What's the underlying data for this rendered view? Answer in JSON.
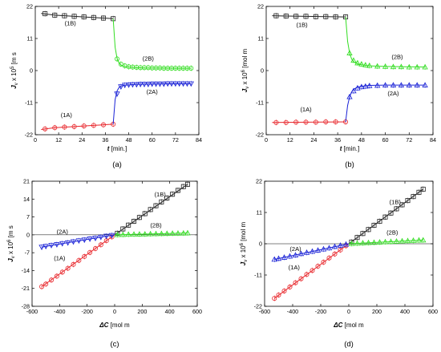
{
  "panels_text": {
    "a": {
      "label": "(a)",
      "ylabel_prefix": "J",
      "ylabel_suffix": "x 10",
      "ylabel_unit": "[m s",
      "xlabel_var": "t",
      "xlabel_unit": "[min.]"
    },
    "b": {
      "label": "(b)",
      "ylabel_prefix": "J",
      "ylabel_suffix": "x 10",
      "ylabel_unit": "[mol m",
      "xlabel_var": "t",
      "xlabel_unit": "[min.]"
    },
    "c": {
      "label": "(c)",
      "ylabel_prefix": "J",
      "ylabel_suffix": "x 10",
      "ylabel_unit": "[m s",
      "xlabel_var": "ΔC",
      "xlabel_unit": "[mol m"
    },
    "d": {
      "label": "(d)",
      "ylabel_prefix": "J",
      "ylabel_suffix": "x 10",
      "ylabel_unit": "[mol m",
      "xlabel_var": "ΔC",
      "xlabel_unit": "[mol m"
    }
  },
  "colors": {
    "1A": "#e8262b",
    "1B": "#222222",
    "2A": "#1a22d6",
    "2B": "#33dd22"
  },
  "chart_data": [
    {
      "id": "a",
      "type": "line",
      "xlim": [
        0,
        84
      ],
      "ylim": [
        -22,
        22
      ],
      "xticks": [
        0,
        12,
        24,
        36,
        48,
        60,
        72,
        84
      ],
      "yticks": [
        -22,
        -11,
        0,
        11,
        22
      ],
      "series": [
        {
          "name": "(1B)",
          "color_key": "1B",
          "marker": "square",
          "x": [
            5,
            10,
            15,
            20,
            25,
            30,
            35,
            40
          ],
          "y": [
            19.5,
            19,
            18.8,
            18.6,
            18.4,
            18.2,
            18,
            17.8
          ],
          "curve_x": [
            3,
            10,
            20,
            30,
            40
          ],
          "curve_y": [
            19.6,
            19.0,
            18.6,
            18.2,
            17.8
          ]
        },
        {
          "name": "(2B)",
          "color_key": "2B",
          "marker": "circle",
          "x": [
            42,
            44,
            46,
            48,
            50,
            52,
            54,
            56,
            58,
            60,
            62,
            64,
            66,
            68,
            70,
            72,
            74,
            76,
            78,
            80
          ],
          "y": [
            4,
            2.2,
            1.6,
            1.3,
            1.2,
            1.1,
            1,
            1,
            1,
            0.9,
            0.9,
            0.9,
            0.8,
            0.8,
            0.8,
            0.8,
            0.8,
            0.8,
            0.8,
            0.8
          ],
          "curve_x": [
            40,
            41,
            42,
            43,
            44,
            46,
            48,
            52,
            56,
            64,
            72,
            80
          ],
          "curve_y": [
            17.8,
            8,
            4.2,
            2.6,
            1.9,
            1.4,
            1.2,
            1.0,
            0.9,
            0.85,
            0.8,
            0.8
          ]
        },
        {
          "name": "(1A)",
          "color_key": "1A",
          "marker": "circle",
          "x": [
            5,
            10,
            15,
            20,
            25,
            30,
            35,
            40
          ],
          "y": [
            -20,
            -19.6,
            -19.4,
            -19.2,
            -19,
            -18.8,
            -18.6,
            -18.4
          ],
          "curve_x": [
            3,
            10,
            20,
            30,
            40
          ],
          "curve_y": [
            -20.2,
            -19.6,
            -19.2,
            -18.8,
            -18.4
          ]
        },
        {
          "name": "(2A)",
          "color_key": "2A",
          "marker": "triangle-down",
          "x": [
            42,
            44,
            46,
            48,
            50,
            52,
            54,
            56,
            58,
            60,
            62,
            64,
            66,
            68,
            70,
            72,
            74,
            76,
            78,
            80
          ],
          "y": [
            -8,
            -5.5,
            -5,
            -4.9,
            -4.8,
            -4.8,
            -4.7,
            -4.7,
            -4.7,
            -4.6,
            -4.6,
            -4.6,
            -4.6,
            -4.5,
            -4.5,
            -4.5,
            -4.5,
            -4.5,
            -4.5,
            -4.5
          ],
          "curve_x": [
            40,
            41,
            42,
            43,
            44,
            46,
            48,
            52,
            60,
            70,
            80
          ],
          "curve_y": [
            -18.4,
            -10,
            -7,
            -5.8,
            -5.3,
            -5.0,
            -4.9,
            -4.7,
            -4.6,
            -4.5,
            -4.5
          ]
        }
      ],
      "annotations": [
        {
          "text": "(1B)",
          "x": 18,
          "y": 15.5
        },
        {
          "text": "(2B)",
          "x": 58,
          "y": 3.5
        },
        {
          "text": "(1A)",
          "x": 16,
          "y": -16
        },
        {
          "text": "(2A)",
          "x": 60,
          "y": -8
        }
      ]
    },
    {
      "id": "b",
      "type": "line",
      "xlim": [
        0,
        84
      ],
      "ylim": [
        -22,
        22
      ],
      "xticks": [
        0,
        12,
        24,
        36,
        48,
        60,
        72,
        84
      ],
      "yticks": [
        -22,
        -11,
        0,
        11,
        22
      ],
      "series": [
        {
          "name": "(1B)",
          "color_key": "1B",
          "marker": "square",
          "x": [
            5,
            10,
            15,
            20,
            25,
            30,
            35,
            40
          ],
          "y": [
            18.8,
            18.7,
            18.6,
            18.6,
            18.5,
            18.5,
            18.4,
            18.4
          ],
          "curve_x": [
            3,
            10,
            20,
            30,
            40
          ],
          "curve_y": [
            18.8,
            18.7,
            18.6,
            18.5,
            18.4
          ]
        },
        {
          "name": "(2B)",
          "color_key": "2B",
          "marker": "triangle",
          "x": [
            42,
            44,
            46,
            48,
            50,
            52,
            56,
            60,
            64,
            68,
            72,
            76,
            80
          ],
          "y": [
            6,
            3.5,
            2.6,
            2.2,
            1.9,
            1.7,
            1.5,
            1.4,
            1.3,
            1.3,
            1.2,
            1.2,
            1.2
          ],
          "curve_x": [
            40,
            41,
            42,
            43,
            44,
            46,
            48,
            52,
            60,
            70,
            80
          ],
          "curve_y": [
            18.4,
            10,
            6,
            4,
            3,
            2.3,
            2.0,
            1.6,
            1.4,
            1.3,
            1.2
          ]
        },
        {
          "name": "(1A)",
          "color_key": "1A",
          "marker": "circle",
          "x": [
            5,
            10,
            15,
            20,
            25,
            30,
            35,
            40
          ],
          "y": [
            -17.8,
            -17.8,
            -17.7,
            -17.7,
            -17.7,
            -17.6,
            -17.6,
            -17.6
          ],
          "curve_x": [
            3,
            40
          ],
          "curve_y": [
            -17.8,
            -17.6
          ]
        },
        {
          "name": "(2A)",
          "color_key": "2A",
          "marker": "triangle",
          "x": [
            42,
            44,
            46,
            48,
            50,
            52,
            56,
            60,
            64,
            68,
            72,
            76,
            80
          ],
          "y": [
            -9,
            -7,
            -6,
            -5.6,
            -5.4,
            -5.2,
            -5.1,
            -5,
            -5,
            -5,
            -5,
            -5,
            -5
          ],
          "curve_x": [
            40,
            41,
            42,
            43,
            44,
            46,
            48,
            52,
            60,
            70,
            80
          ],
          "curve_y": [
            -17.6,
            -12,
            -9,
            -7.4,
            -6.4,
            -5.7,
            -5.4,
            -5.1,
            -5.0,
            -5.0,
            -5.0
          ]
        }
      ],
      "annotations": [
        {
          "text": "(1B)",
          "x": 18,
          "y": 15
        },
        {
          "text": "(2B)",
          "x": 66,
          "y": 4
        },
        {
          "text": "(1A)",
          "x": 20,
          "y": -14
        },
        {
          "text": "(2A)",
          "x": 64,
          "y": -8.5
        }
      ]
    },
    {
      "id": "c",
      "type": "scatter",
      "xlim": [
        -600,
        600
      ],
      "ylim": [
        -28,
        21
      ],
      "xticks": [
        -600,
        -400,
        -200,
        0,
        200,
        400,
        600
      ],
      "yticks": [
        -28,
        -21,
        -14,
        -7,
        0,
        7,
        14,
        21
      ],
      "series": [
        {
          "name": "(1B)",
          "color_key": "1B",
          "marker": "square",
          "x": [
            20,
            60,
            100,
            140,
            180,
            220,
            260,
            300,
            340,
            380,
            420,
            460,
            500,
            530
          ],
          "y": [
            0.6,
            2.3,
            3.8,
            5.3,
            6.8,
            8.3,
            9.9,
            11.4,
            12.9,
            14.4,
            15.9,
            17.4,
            18.9,
            19.8
          ],
          "line": [
            [
              0,
              0
            ],
            [
              530,
              19.8
            ]
          ]
        },
        {
          "name": "(2B)",
          "color_key": "2B",
          "marker": "triangle",
          "x": [
            20,
            60,
            100,
            140,
            180,
            220,
            260,
            300,
            340,
            380,
            420,
            460,
            500,
            530
          ],
          "y": [
            0.05,
            0.1,
            0.15,
            0.2,
            0.25,
            0.3,
            0.35,
            0.4,
            0.45,
            0.5,
            0.55,
            0.6,
            0.65,
            0.7
          ],
          "line": [
            [
              0,
              0
            ],
            [
              530,
              0.7
            ]
          ]
        },
        {
          "name": "(1A)",
          "color_key": "1A",
          "marker": "circle",
          "x": [
            -530,
            -500,
            -460,
            -420,
            -380,
            -340,
            -300,
            -260,
            -220,
            -180,
            -140,
            -100,
            -60,
            -20
          ],
          "y": [
            -20.3,
            -19.3,
            -17.7,
            -16.2,
            -14.6,
            -13.1,
            -11.6,
            -10,
            -8.5,
            -6.9,
            -5.4,
            -3.9,
            -2.3,
            -0.8
          ],
          "line": [
            [
              -530,
              -20.3
            ],
            [
              0,
              0
            ]
          ]
        },
        {
          "name": "(2A)",
          "color_key": "2A",
          "marker": "triangle-down",
          "x": [
            -530,
            -500,
            -460,
            -420,
            -380,
            -340,
            -300,
            -260,
            -220,
            -180,
            -140,
            -100,
            -60,
            -20
          ],
          "y": [
            -4.8,
            -4.5,
            -4.1,
            -3.8,
            -3.4,
            -3.1,
            -2.7,
            -2.3,
            -2,
            -1.6,
            -1.3,
            -0.9,
            -0.5,
            -0.2
          ],
          "line": [
            [
              -530,
              -4.8
            ],
            [
              0,
              0
            ]
          ]
        }
      ],
      "annotations": [
        {
          "text": "(1B)",
          "x": 330,
          "y": 15
        },
        {
          "text": "(2B)",
          "x": 300,
          "y": 3
        },
        {
          "text": "(1A)",
          "x": -400,
          "y": -10
        },
        {
          "text": "(2A)",
          "x": -380,
          "y": 0.5
        }
      ]
    },
    {
      "id": "d",
      "type": "scatter",
      "xlim": [
        -600,
        600
      ],
      "ylim": [
        -22,
        22
      ],
      "xticks": [
        -600,
        -400,
        -200,
        0,
        200,
        400,
        600
      ],
      "yticks": [
        -22,
        -11,
        0,
        11,
        22
      ],
      "series": [
        {
          "name": "(1B)",
          "color_key": "1B",
          "marker": "square",
          "x": [
            20,
            60,
            100,
            140,
            180,
            220,
            260,
            300,
            340,
            380,
            420,
            460,
            500,
            530
          ],
          "y": [
            0.6,
            2.2,
            3.6,
            5,
            6.5,
            7.9,
            9.4,
            10.8,
            12.3,
            13.7,
            15.2,
            16.6,
            18.1,
            19.2
          ],
          "line": [
            [
              0,
              0
            ],
            [
              530,
              19.2
            ]
          ]
        },
        {
          "name": "(2B)",
          "color_key": "2B",
          "marker": "triangle",
          "x": [
            20,
            60,
            100,
            140,
            180,
            220,
            260,
            300,
            340,
            380,
            420,
            460,
            500,
            530
          ],
          "y": [
            0.05,
            0.15,
            0.25,
            0.35,
            0.45,
            0.55,
            0.65,
            0.75,
            0.85,
            0.95,
            1.05,
            1.15,
            1.25,
            1.3
          ],
          "line": [
            [
              0,
              0
            ],
            [
              530,
              1.3
            ]
          ]
        },
        {
          "name": "(1A)",
          "color_key": "1A",
          "marker": "circle",
          "x": [
            -530,
            -500,
            -460,
            -420,
            -380,
            -340,
            -300,
            -260,
            -220,
            -180,
            -140,
            -100,
            -60,
            -20
          ],
          "y": [
            -19.2,
            -18,
            -16.6,
            -15.2,
            -13.7,
            -12.3,
            -10.8,
            -9.4,
            -7.9,
            -6.5,
            -5,
            -3.6,
            -2.2,
            -0.7
          ],
          "line": [
            [
              -530,
              -19.2
            ],
            [
              0,
              0
            ]
          ]
        },
        {
          "name": "(2A)",
          "color_key": "2A",
          "marker": "triangle",
          "x": [
            -530,
            -500,
            -460,
            -420,
            -380,
            -340,
            -300,
            -260,
            -220,
            -180,
            -140,
            -100,
            -60,
            -20
          ],
          "y": [
            -5.5,
            -5.2,
            -4.8,
            -4.4,
            -4,
            -3.5,
            -3.1,
            -2.7,
            -2.3,
            -1.9,
            -1.5,
            -1,
            -0.6,
            -0.2
          ],
          "line": [
            [
              -530,
              -5.5
            ],
            [
              0,
              0
            ]
          ]
        }
      ],
      "annotations": [
        {
          "text": "(1B)",
          "x": 330,
          "y": 14
        },
        {
          "text": "(2B)",
          "x": 310,
          "y": 3.2
        },
        {
          "text": "(1A)",
          "x": -390,
          "y": -9
        },
        {
          "text": "(2A)",
          "x": -380,
          "y": -2.5
        }
      ]
    }
  ]
}
